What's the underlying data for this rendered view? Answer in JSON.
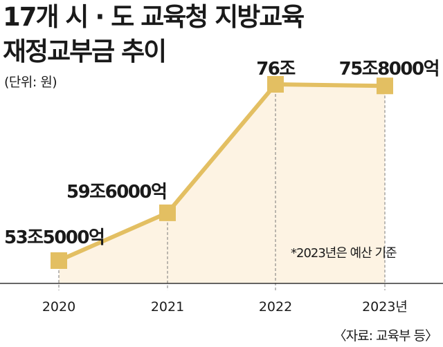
{
  "chart_data": {
    "type": "line",
    "title_lines": [
      "17개 시 · 도 교육청 지방교육",
      "재정교부금 추이"
    ],
    "unit": "(단위: 원)",
    "categories": [
      "2020",
      "2021",
      "2022",
      "2023년"
    ],
    "values": [
      53.5,
      59.6,
      76,
      75.8
    ],
    "value_labels": [
      "53조5000억",
      "59조6000억",
      "76조",
      "75조8000억"
    ],
    "note": "*2023년은 예산 기준",
    "source": "〈자료: 교육부 등〉",
    "colors": {
      "line": "#e3bf62",
      "fill": "#fdf3e3",
      "axis": "#333333",
      "dash": "#777777"
    }
  }
}
